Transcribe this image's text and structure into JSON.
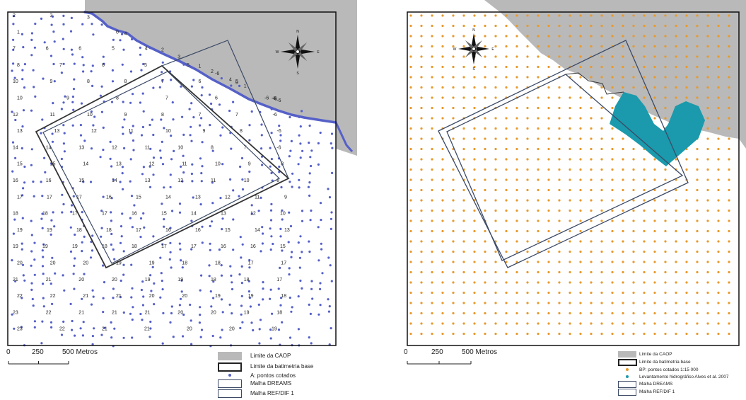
{
  "left_map": {
    "scale": {
      "labels": [
        "0",
        "250",
        "500 Metros"
      ]
    },
    "legend": [
      {
        "label": "Limite da CAOP",
        "symbol": "grey-fill"
      },
      {
        "label": "Limite da batimetria base",
        "symbol": "thick-black-outline"
      },
      {
        "label": "A: pontos cotados",
        "symbol": "blue-dot"
      },
      {
        "label": "Malha DREAMS",
        "symbol": "slate-outline"
      },
      {
        "label": "Malha REF/DIF 1",
        "symbol": "slate-outline"
      }
    ],
    "north_labels": [
      "N",
      "E",
      "S",
      "W"
    ],
    "depth_rows": [
      "2 3 3 4 2 1 0 -6",
      "1 0 -6",
      "7 6 6 5 4 3 2 1 -6",
      "8 7 6 5 5 4 -6",
      "10 9 8 8 7 6 5 -6",
      "10 9 8 7 6 -6",
      "12 11 10 9 8 7 7 -6",
      "13 13 12 11 10 9 8 -6",
      "14 14 13 12 11 10 8 7 -6",
      "15 15 14 13 12 11 10 9 8",
      "16 16 15 14 13 12 11 10 8",
      "17 17 17 16 15 14 13 12 11 9",
      "18 18 17 17 16 15 14 13 12 10",
      "19 19 18 18 17 16 16 15 14 13",
      "19 19 19 18 18 17 17 16 16 15",
      "20 20 20 19 19 18 18 17 17",
      "21 21 20 20 19 19 18 18 17",
      "22 22 21 21 20 20 19 19 18",
      "23 22 21 21 21 20 20 19 18",
      "23 22 21 21 20 20 19"
    ]
  },
  "right_map": {
    "scale": {
      "labels": [
        "0",
        "250",
        "500 Metros"
      ]
    },
    "legend": [
      {
        "label": "Limite da CAOP",
        "symbol": "grey-fill"
      },
      {
        "label": "Limite da batimetria base",
        "symbol": "thick-black-outline"
      },
      {
        "label": "BP: pontos cotados 1:15 000",
        "symbol": "orange-dot"
      },
      {
        "label": "Levantamento hidrográfico Alves et al. 2007",
        "symbol": "teal-dot"
      },
      {
        "label": "Malha DREAMS",
        "symbol": "slate-outline"
      },
      {
        "label": "Malha REF/DIF 1",
        "symbol": "slate-outline"
      }
    ],
    "north_labels": [
      "N",
      "E",
      "S",
      "W"
    ]
  },
  "colors": {
    "land": "#b9b9b9",
    "points_blue": "#5560c8",
    "points_orange": "#e89a2c",
    "survey_teal": "#1a9aac",
    "grid_outline": "#3c4a66",
    "bathy_outline": "#333333"
  }
}
